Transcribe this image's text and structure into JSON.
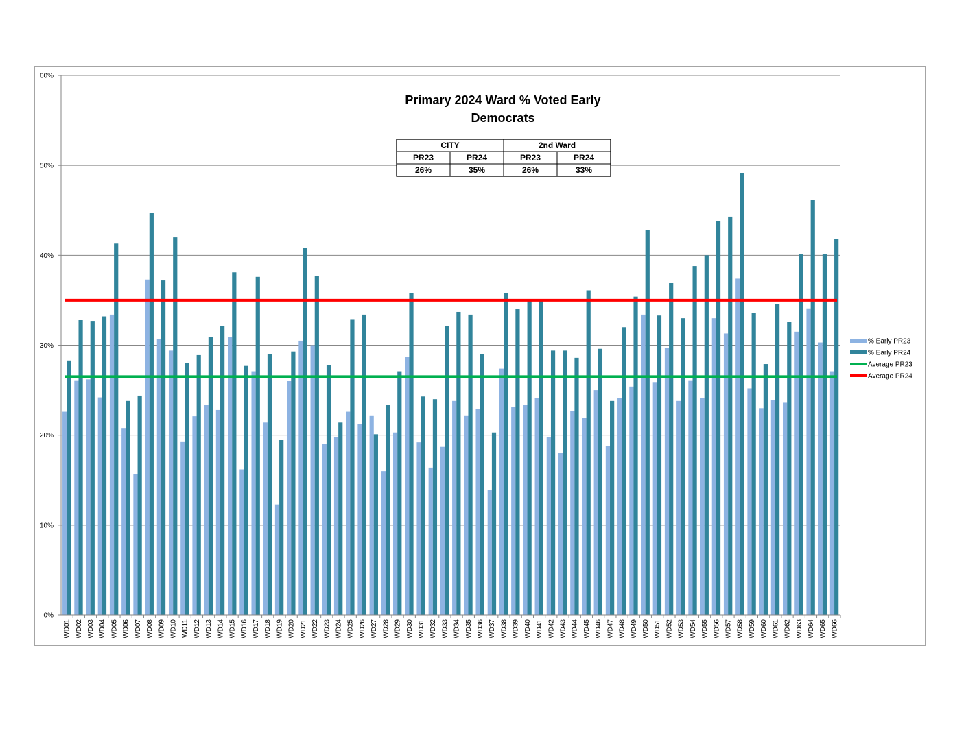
{
  "chart_data": {
    "type": "bar",
    "title": "Primary 2024 Ward % Voted Early",
    "subtitle": "Democrats",
    "xlabel": "",
    "ylabel": "",
    "ylim": [
      0,
      0.6
    ],
    "yticks": [
      {
        "value": 0,
        "label": "0%"
      },
      {
        "value": 0.1,
        "label": "10%"
      },
      {
        "value": 0.2,
        "label": "20%"
      },
      {
        "value": 0.3,
        "label": "30%"
      },
      {
        "value": 0.4,
        "label": "40%"
      },
      {
        "value": 0.5,
        "label": "50%"
      },
      {
        "value": 0.6,
        "label": "60%"
      }
    ],
    "grid": true,
    "legend_position": "right",
    "categories": [
      "WD01",
      "WD02",
      "WD03",
      "WD04",
      "WD05",
      "WD06",
      "WD07",
      "WD08",
      "WD09",
      "WD10",
      "WD11",
      "WD12",
      "WD13",
      "WD14",
      "WD15",
      "WD16",
      "WD17",
      "WD18",
      "WD19",
      "WD20",
      "WD21",
      "WD22",
      "WD23",
      "WD24",
      "WD25",
      "WD26",
      "WD27",
      "WD28",
      "WD29",
      "WD30",
      "WD31",
      "WD32",
      "WD33",
      "WD34",
      "WD35",
      "WD36",
      "WD37",
      "WD38",
      "WD39",
      "WD40",
      "WD41",
      "WD42",
      "WD43",
      "WD44",
      "WD45",
      "WD46",
      "WD47",
      "WD48",
      "WD49",
      "WD50",
      "WD51",
      "WD52",
      "WD53",
      "WD54",
      "WD55",
      "WD56",
      "WD57",
      "WD58",
      "WD59",
      "WD60",
      "WD61",
      "WD62",
      "WD63",
      "WD64",
      "WD65",
      "WD66"
    ],
    "series": [
      {
        "name": "% Early PR23",
        "color": "#8db3e2",
        "values": [
          0.226,
          0.261,
          0.262,
          0.242,
          0.334,
          0.208,
          0.157,
          0.373,
          0.307,
          0.294,
          0.193,
          0.221,
          0.234,
          0.228,
          0.309,
          0.162,
          0.271,
          0.214,
          0.123,
          0.26,
          0.305,
          0.3,
          0.19,
          0.198,
          0.226,
          0.212,
          0.222,
          0.16,
          0.203,
          0.287,
          0.192,
          0.164,
          0.187,
          0.238,
          0.222,
          0.229,
          0.139,
          0.274,
          0.231,
          0.234,
          0.241,
          0.198,
          0.18,
          0.227,
          0.219,
          0.25,
          0.188,
          0.241,
          0.254,
          0.334,
          0.259,
          0.297,
          0.238,
          0.261,
          0.241,
          0.33,
          0.313,
          0.374,
          0.252,
          0.23,
          0.239,
          0.236,
          0.315,
          0.341,
          0.303,
          0.271
        ]
      },
      {
        "name": "% Early PR24",
        "color": "#31849b",
        "values": [
          0.283,
          0.328,
          0.327,
          0.332,
          0.413,
          0.238,
          0.244,
          0.447,
          0.372,
          0.42,
          0.28,
          0.289,
          0.309,
          0.321,
          0.381,
          0.277,
          0.376,
          0.29,
          0.195,
          0.293,
          0.408,
          0.377,
          0.278,
          0.214,
          0.329,
          0.334,
          0.201,
          0.234,
          0.271,
          0.358,
          0.243,
          0.24,
          0.321,
          0.337,
          0.334,
          0.29,
          0.203,
          0.358,
          0.34,
          0.35,
          0.349,
          0.294,
          0.294,
          0.286,
          0.361,
          0.296,
          0.238,
          0.32,
          0.354,
          0.428,
          0.333,
          0.369,
          0.33,
          0.388,
          0.4,
          0.438,
          0.443,
          0.491,
          0.336,
          0.279,
          0.346,
          0.326,
          0.401,
          0.462,
          0.401,
          0.418
        ]
      }
    ],
    "reference_lines": [
      {
        "name": "Average PR23",
        "value": 0.265,
        "color": "#00b050"
      },
      {
        "name": "Average PR24",
        "value": 0.35,
        "color": "#ff0000"
      }
    ],
    "summary_table": {
      "groups": [
        "CITY",
        "2nd Ward"
      ],
      "headers": [
        "PR23",
        "PR24",
        "PR23",
        "PR24"
      ],
      "values": [
        "26%",
        "35%",
        "26%",
        "33%"
      ]
    }
  }
}
